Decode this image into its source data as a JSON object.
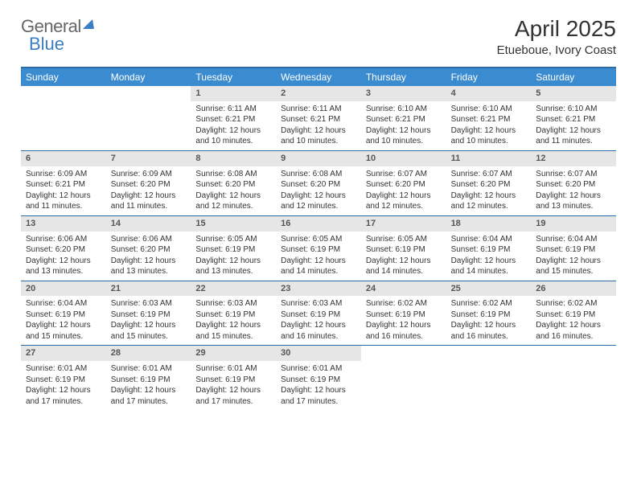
{
  "logo": {
    "word1": "General",
    "word2": "Blue"
  },
  "header": {
    "month_title": "April 2025",
    "location": "Etueboue, Ivory Coast"
  },
  "colors": {
    "header_bar": "#3b8bd1",
    "rule": "#2c6aa8",
    "daynum_bg": "#e6e6e6",
    "logo_blue": "#3a7fc4",
    "text": "#333333"
  },
  "weekdays": [
    "Sunday",
    "Monday",
    "Tuesday",
    "Wednesday",
    "Thursday",
    "Friday",
    "Saturday"
  ],
  "weeks": [
    [
      null,
      null,
      {
        "n": "1",
        "sr": "Sunrise: 6:11 AM",
        "ss": "Sunset: 6:21 PM",
        "dl": "Daylight: 12 hours and 10 minutes."
      },
      {
        "n": "2",
        "sr": "Sunrise: 6:11 AM",
        "ss": "Sunset: 6:21 PM",
        "dl": "Daylight: 12 hours and 10 minutes."
      },
      {
        "n": "3",
        "sr": "Sunrise: 6:10 AM",
        "ss": "Sunset: 6:21 PM",
        "dl": "Daylight: 12 hours and 10 minutes."
      },
      {
        "n": "4",
        "sr": "Sunrise: 6:10 AM",
        "ss": "Sunset: 6:21 PM",
        "dl": "Daylight: 12 hours and 10 minutes."
      },
      {
        "n": "5",
        "sr": "Sunrise: 6:10 AM",
        "ss": "Sunset: 6:21 PM",
        "dl": "Daylight: 12 hours and 11 minutes."
      }
    ],
    [
      {
        "n": "6",
        "sr": "Sunrise: 6:09 AM",
        "ss": "Sunset: 6:21 PM",
        "dl": "Daylight: 12 hours and 11 minutes."
      },
      {
        "n": "7",
        "sr": "Sunrise: 6:09 AM",
        "ss": "Sunset: 6:20 PM",
        "dl": "Daylight: 12 hours and 11 minutes."
      },
      {
        "n": "8",
        "sr": "Sunrise: 6:08 AM",
        "ss": "Sunset: 6:20 PM",
        "dl": "Daylight: 12 hours and 12 minutes."
      },
      {
        "n": "9",
        "sr": "Sunrise: 6:08 AM",
        "ss": "Sunset: 6:20 PM",
        "dl": "Daylight: 12 hours and 12 minutes."
      },
      {
        "n": "10",
        "sr": "Sunrise: 6:07 AM",
        "ss": "Sunset: 6:20 PM",
        "dl": "Daylight: 12 hours and 12 minutes."
      },
      {
        "n": "11",
        "sr": "Sunrise: 6:07 AM",
        "ss": "Sunset: 6:20 PM",
        "dl": "Daylight: 12 hours and 12 minutes."
      },
      {
        "n": "12",
        "sr": "Sunrise: 6:07 AM",
        "ss": "Sunset: 6:20 PM",
        "dl": "Daylight: 12 hours and 13 minutes."
      }
    ],
    [
      {
        "n": "13",
        "sr": "Sunrise: 6:06 AM",
        "ss": "Sunset: 6:20 PM",
        "dl": "Daylight: 12 hours and 13 minutes."
      },
      {
        "n": "14",
        "sr": "Sunrise: 6:06 AM",
        "ss": "Sunset: 6:20 PM",
        "dl": "Daylight: 12 hours and 13 minutes."
      },
      {
        "n": "15",
        "sr": "Sunrise: 6:05 AM",
        "ss": "Sunset: 6:19 PM",
        "dl": "Daylight: 12 hours and 13 minutes."
      },
      {
        "n": "16",
        "sr": "Sunrise: 6:05 AM",
        "ss": "Sunset: 6:19 PM",
        "dl": "Daylight: 12 hours and 14 minutes."
      },
      {
        "n": "17",
        "sr": "Sunrise: 6:05 AM",
        "ss": "Sunset: 6:19 PM",
        "dl": "Daylight: 12 hours and 14 minutes."
      },
      {
        "n": "18",
        "sr": "Sunrise: 6:04 AM",
        "ss": "Sunset: 6:19 PM",
        "dl": "Daylight: 12 hours and 14 minutes."
      },
      {
        "n": "19",
        "sr": "Sunrise: 6:04 AM",
        "ss": "Sunset: 6:19 PM",
        "dl": "Daylight: 12 hours and 15 minutes."
      }
    ],
    [
      {
        "n": "20",
        "sr": "Sunrise: 6:04 AM",
        "ss": "Sunset: 6:19 PM",
        "dl": "Daylight: 12 hours and 15 minutes."
      },
      {
        "n": "21",
        "sr": "Sunrise: 6:03 AM",
        "ss": "Sunset: 6:19 PM",
        "dl": "Daylight: 12 hours and 15 minutes."
      },
      {
        "n": "22",
        "sr": "Sunrise: 6:03 AM",
        "ss": "Sunset: 6:19 PM",
        "dl": "Daylight: 12 hours and 15 minutes."
      },
      {
        "n": "23",
        "sr": "Sunrise: 6:03 AM",
        "ss": "Sunset: 6:19 PM",
        "dl": "Daylight: 12 hours and 16 minutes."
      },
      {
        "n": "24",
        "sr": "Sunrise: 6:02 AM",
        "ss": "Sunset: 6:19 PM",
        "dl": "Daylight: 12 hours and 16 minutes."
      },
      {
        "n": "25",
        "sr": "Sunrise: 6:02 AM",
        "ss": "Sunset: 6:19 PM",
        "dl": "Daylight: 12 hours and 16 minutes."
      },
      {
        "n": "26",
        "sr": "Sunrise: 6:02 AM",
        "ss": "Sunset: 6:19 PM",
        "dl": "Daylight: 12 hours and 16 minutes."
      }
    ],
    [
      {
        "n": "27",
        "sr": "Sunrise: 6:01 AM",
        "ss": "Sunset: 6:19 PM",
        "dl": "Daylight: 12 hours and 17 minutes."
      },
      {
        "n": "28",
        "sr": "Sunrise: 6:01 AM",
        "ss": "Sunset: 6:19 PM",
        "dl": "Daylight: 12 hours and 17 minutes."
      },
      {
        "n": "29",
        "sr": "Sunrise: 6:01 AM",
        "ss": "Sunset: 6:19 PM",
        "dl": "Daylight: 12 hours and 17 minutes."
      },
      {
        "n": "30",
        "sr": "Sunrise: 6:01 AM",
        "ss": "Sunset: 6:19 PM",
        "dl": "Daylight: 12 hours and 17 minutes."
      },
      null,
      null,
      null
    ]
  ]
}
